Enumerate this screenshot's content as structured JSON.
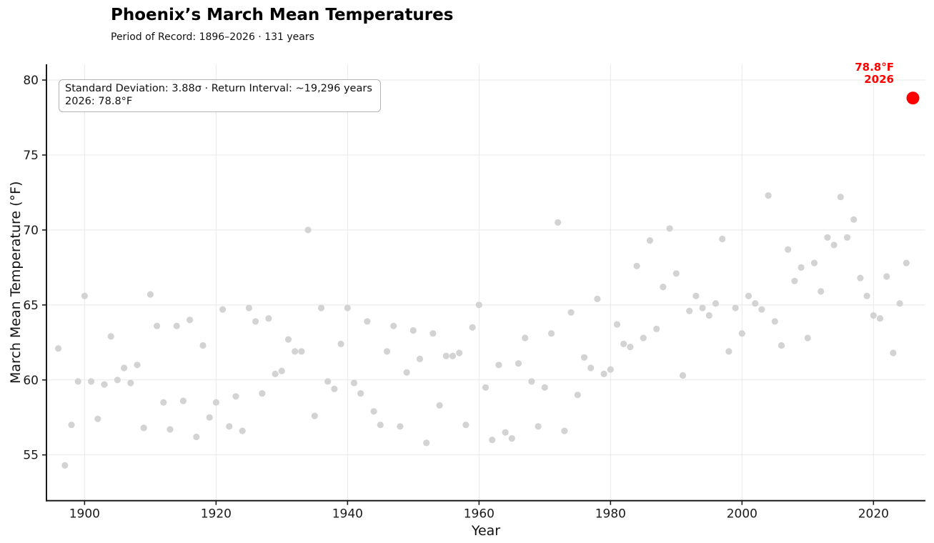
{
  "header": {
    "title": "Phoenix’s March Mean Temperatures",
    "subtitle": "Period of Record: 1896–2026 · 131 years"
  },
  "annotation": {
    "line1": "Standard Deviation: 3.88σ · Return Interval: ~19,296 years",
    "line2": "2026: 78.8°F"
  },
  "highlight_label": {
    "line1": "78.8°F",
    "line2": "2026",
    "color": "#ff0000"
  },
  "chart_data": {
    "type": "scatter",
    "title": "Phoenix’s March Mean Temperatures",
    "subtitle": "Period of Record: 1896–2026 · 131 years",
    "xlabel": "Year",
    "ylabel": "March Mean Temperature (°F)",
    "x_ticks": [
      1900,
      1920,
      1940,
      1960,
      1980,
      2000,
      2020
    ],
    "y_ticks": [
      55,
      60,
      65,
      70,
      75,
      80
    ],
    "xlim": [
      1894.2,
      2027.9
    ],
    "ylim": [
      51.95,
      81.05
    ],
    "grid": true,
    "legend": "none",
    "point_color": "#d3d3d3",
    "highlight_color": "#ff0000",
    "series": [
      {
        "name": "March mean temperature (°F)",
        "points": [
          [
            1896,
            62.1
          ],
          [
            1897,
            54.3
          ],
          [
            1898,
            57.0
          ],
          [
            1899,
            59.9
          ],
          [
            1900,
            65.6
          ],
          [
            1901,
            59.9
          ],
          [
            1902,
            57.4
          ],
          [
            1903,
            59.7
          ],
          [
            1904,
            62.9
          ],
          [
            1905,
            60.0
          ],
          [
            1906,
            60.8
          ],
          [
            1907,
            59.8
          ],
          [
            1908,
            61.0
          ],
          [
            1909,
            56.8
          ],
          [
            1910,
            65.7
          ],
          [
            1911,
            63.6
          ],
          [
            1912,
            58.5
          ],
          [
            1913,
            56.7
          ],
          [
            1914,
            63.6
          ],
          [
            1915,
            58.6
          ],
          [
            1916,
            64.0
          ],
          [
            1917,
            56.2
          ],
          [
            1918,
            62.3
          ],
          [
            1919,
            57.5
          ],
          [
            1920,
            58.5
          ],
          [
            1921,
            64.7
          ],
          [
            1922,
            56.9
          ],
          [
            1923,
            58.9
          ],
          [
            1924,
            56.6
          ],
          [
            1925,
            64.8
          ],
          [
            1926,
            63.9
          ],
          [
            1927,
            59.1
          ],
          [
            1928,
            64.1
          ],
          [
            1929,
            60.4
          ],
          [
            1930,
            60.6
          ],
          [
            1931,
            62.7
          ],
          [
            1932,
            61.9
          ],
          [
            1933,
            61.9
          ],
          [
            1934,
            70.0
          ],
          [
            1935,
            57.6
          ],
          [
            1936,
            64.8
          ],
          [
            1937,
            59.9
          ],
          [
            1938,
            59.4
          ],
          [
            1939,
            62.4
          ],
          [
            1940,
            64.8
          ],
          [
            1941,
            59.8
          ],
          [
            1942,
            59.1
          ],
          [
            1943,
            63.9
          ],
          [
            1944,
            57.9
          ],
          [
            1945,
            57.0
          ],
          [
            1946,
            61.9
          ],
          [
            1947,
            63.6
          ],
          [
            1948,
            56.9
          ],
          [
            1949,
            60.5
          ],
          [
            1950,
            63.3
          ],
          [
            1951,
            61.4
          ],
          [
            1952,
            55.8
          ],
          [
            1953,
            63.1
          ],
          [
            1954,
            58.3
          ],
          [
            1955,
            61.6
          ],
          [
            1956,
            61.6
          ],
          [
            1957,
            61.8
          ],
          [
            1958,
            57.0
          ],
          [
            1959,
            63.5
          ],
          [
            1960,
            65.0
          ],
          [
            1961,
            59.5
          ],
          [
            1962,
            56.0
          ],
          [
            1963,
            61.0
          ],
          [
            1964,
            56.5
          ],
          [
            1965,
            56.1
          ],
          [
            1966,
            61.1
          ],
          [
            1967,
            62.8
          ],
          [
            1968,
            59.9
          ],
          [
            1969,
            56.9
          ],
          [
            1970,
            59.5
          ],
          [
            1971,
            63.1
          ],
          [
            1972,
            70.5
          ],
          [
            1973,
            56.6
          ],
          [
            1974,
            64.5
          ],
          [
            1975,
            59.0
          ],
          [
            1976,
            61.5
          ],
          [
            1977,
            60.8
          ],
          [
            1978,
            65.4
          ],
          [
            1979,
            60.4
          ],
          [
            1980,
            60.7
          ],
          [
            1981,
            63.7
          ],
          [
            1982,
            62.4
          ],
          [
            1983,
            62.2
          ],
          [
            1984,
            67.6
          ],
          [
            1985,
            62.8
          ],
          [
            1986,
            69.3
          ],
          [
            1987,
            63.4
          ],
          [
            1988,
            66.2
          ],
          [
            1989,
            70.1
          ],
          [
            1990,
            67.1
          ],
          [
            1991,
            60.3
          ],
          [
            1992,
            64.6
          ],
          [
            1993,
            65.6
          ],
          [
            1994,
            64.8
          ],
          [
            1995,
            64.3
          ],
          [
            1996,
            65.1
          ],
          [
            1997,
            69.4
          ],
          [
            1998,
            61.9
          ],
          [
            1999,
            64.8
          ],
          [
            2000,
            63.1
          ],
          [
            2001,
            65.6
          ],
          [
            2002,
            65.1
          ],
          [
            2003,
            64.7
          ],
          [
            2004,
            72.3
          ],
          [
            2005,
            63.9
          ],
          [
            2006,
            62.3
          ],
          [
            2007,
            68.7
          ],
          [
            2008,
            66.6
          ],
          [
            2009,
            67.5
          ],
          [
            2010,
            62.8
          ],
          [
            2011,
            67.8
          ],
          [
            2012,
            65.9
          ],
          [
            2013,
            69.5
          ],
          [
            2014,
            69.0
          ],
          [
            2015,
            72.2
          ],
          [
            2016,
            69.5
          ],
          [
            2017,
            70.7
          ],
          [
            2018,
            66.8
          ],
          [
            2019,
            65.6
          ],
          [
            2020,
            64.3
          ],
          [
            2021,
            64.1
          ],
          [
            2022,
            66.9
          ],
          [
            2023,
            61.8
          ],
          [
            2024,
            65.1
          ],
          [
            2025,
            67.8
          ]
        ]
      }
    ],
    "highlight_point": {
      "year": 2026,
      "value": 78.8,
      "label": "78.8°F",
      "year_label": "2026"
    }
  }
}
